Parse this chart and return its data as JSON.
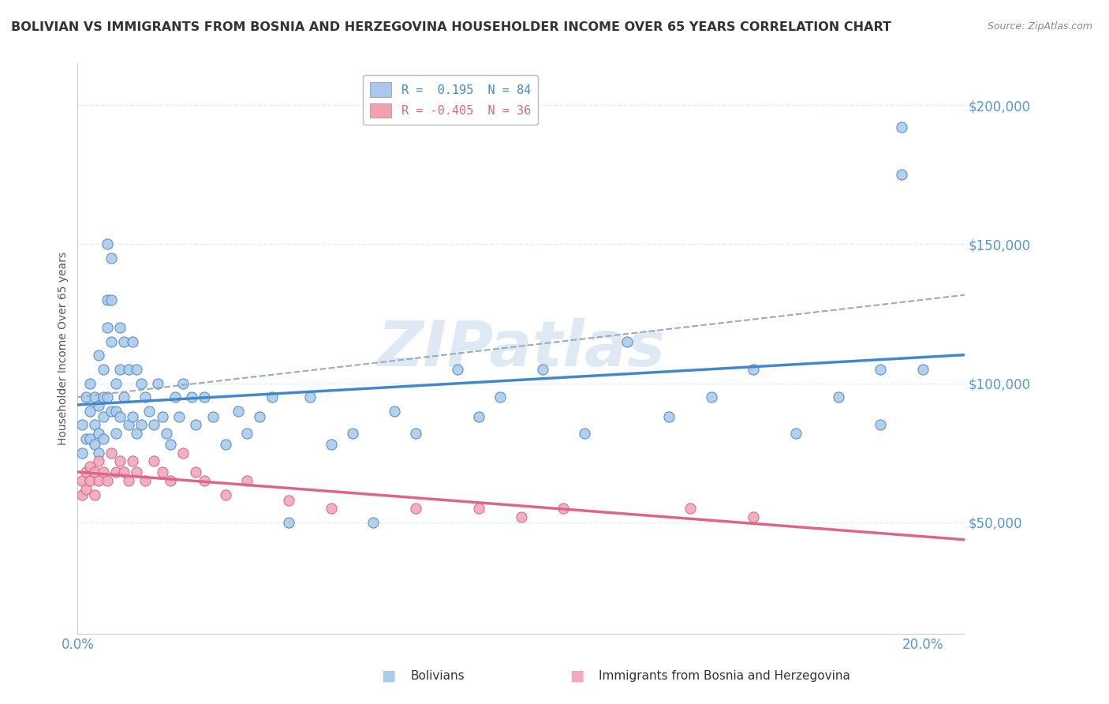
{
  "title": "BOLIVIAN VS IMMIGRANTS FROM BOSNIA AND HERZEGOVINA HOUSEHOLDER INCOME OVER 65 YEARS CORRELATION CHART",
  "source": "Source: ZipAtlas.com",
  "ylabel": "Householder Income Over 65 years",
  "y_tick_labels": [
    "$50,000",
    "$100,000",
    "$150,000",
    "$200,000"
  ],
  "y_tick_values": [
    50000,
    100000,
    150000,
    200000
  ],
  "xlim": [
    0.0,
    0.21
  ],
  "ylim": [
    10000,
    215000
  ],
  "watermark": "ZIPatlas",
  "legend_entries": [
    {
      "label_r": "R = ",
      "label_rv": " 0.195",
      "label_n": "  N = 84",
      "color": "#a8c8f0"
    },
    {
      "label_r": "R =",
      "label_rv": " -0.405",
      "label_n": "  N = 36",
      "color": "#f4a0b0"
    }
  ],
  "bolivians_x": [
    0.001,
    0.001,
    0.002,
    0.002,
    0.003,
    0.003,
    0.003,
    0.004,
    0.004,
    0.004,
    0.005,
    0.005,
    0.005,
    0.005,
    0.006,
    0.006,
    0.006,
    0.006,
    0.007,
    0.007,
    0.007,
    0.007,
    0.008,
    0.008,
    0.008,
    0.008,
    0.009,
    0.009,
    0.009,
    0.01,
    0.01,
    0.01,
    0.011,
    0.011,
    0.012,
    0.012,
    0.013,
    0.013,
    0.014,
    0.014,
    0.015,
    0.015,
    0.016,
    0.017,
    0.018,
    0.019,
    0.02,
    0.021,
    0.022,
    0.023,
    0.024,
    0.025,
    0.027,
    0.028,
    0.03,
    0.032,
    0.035,
    0.038,
    0.04,
    0.043,
    0.046,
    0.05,
    0.055,
    0.06,
    0.065,
    0.07,
    0.075,
    0.08,
    0.09,
    0.095,
    0.1,
    0.11,
    0.12,
    0.13,
    0.14,
    0.15,
    0.16,
    0.17,
    0.18,
    0.19,
    0.195,
    0.2,
    0.195,
    0.19
  ],
  "bolivians_y": [
    85000,
    75000,
    95000,
    80000,
    100000,
    90000,
    80000,
    95000,
    85000,
    78000,
    110000,
    92000,
    82000,
    75000,
    105000,
    95000,
    88000,
    80000,
    150000,
    130000,
    120000,
    95000,
    145000,
    130000,
    115000,
    90000,
    100000,
    90000,
    82000,
    120000,
    105000,
    88000,
    115000,
    95000,
    105000,
    85000,
    115000,
    88000,
    105000,
    82000,
    100000,
    85000,
    95000,
    90000,
    85000,
    100000,
    88000,
    82000,
    78000,
    95000,
    88000,
    100000,
    95000,
    85000,
    95000,
    88000,
    78000,
    90000,
    82000,
    88000,
    95000,
    50000,
    95000,
    78000,
    82000,
    50000,
    90000,
    82000,
    105000,
    88000,
    95000,
    105000,
    82000,
    115000,
    88000,
    95000,
    105000,
    82000,
    95000,
    105000,
    192000,
    105000,
    175000,
    85000
  ],
  "bosnia_x": [
    0.001,
    0.001,
    0.002,
    0.002,
    0.003,
    0.003,
    0.004,
    0.004,
    0.005,
    0.005,
    0.006,
    0.007,
    0.008,
    0.009,
    0.01,
    0.011,
    0.012,
    0.013,
    0.014,
    0.016,
    0.018,
    0.02,
    0.022,
    0.025,
    0.028,
    0.03,
    0.035,
    0.04,
    0.05,
    0.06,
    0.08,
    0.095,
    0.105,
    0.115,
    0.145,
    0.16
  ],
  "bosnia_y": [
    65000,
    60000,
    68000,
    62000,
    70000,
    65000,
    68000,
    60000,
    72000,
    65000,
    68000,
    65000,
    75000,
    68000,
    72000,
    68000,
    65000,
    72000,
    68000,
    65000,
    72000,
    68000,
    65000,
    75000,
    68000,
    65000,
    60000,
    65000,
    58000,
    55000,
    55000,
    55000,
    52000,
    55000,
    55000,
    52000
  ],
  "dot_color_blue": "#aaccee",
  "dot_color_pink": "#f4a8b8",
  "dot_edge_blue": "#5588bb",
  "dot_edge_pink": "#cc6688",
  "trend_blue": "#4488cc",
  "trend_pink": "#dd6688",
  "trend_gray": "#99aabb",
  "grid_color": "#ddeeff",
  "background_color": "#ffffff",
  "title_color": "#333333",
  "ylabel_color": "#555555",
  "axis_tick_color": "#5599cc",
  "source_color": "#888888"
}
